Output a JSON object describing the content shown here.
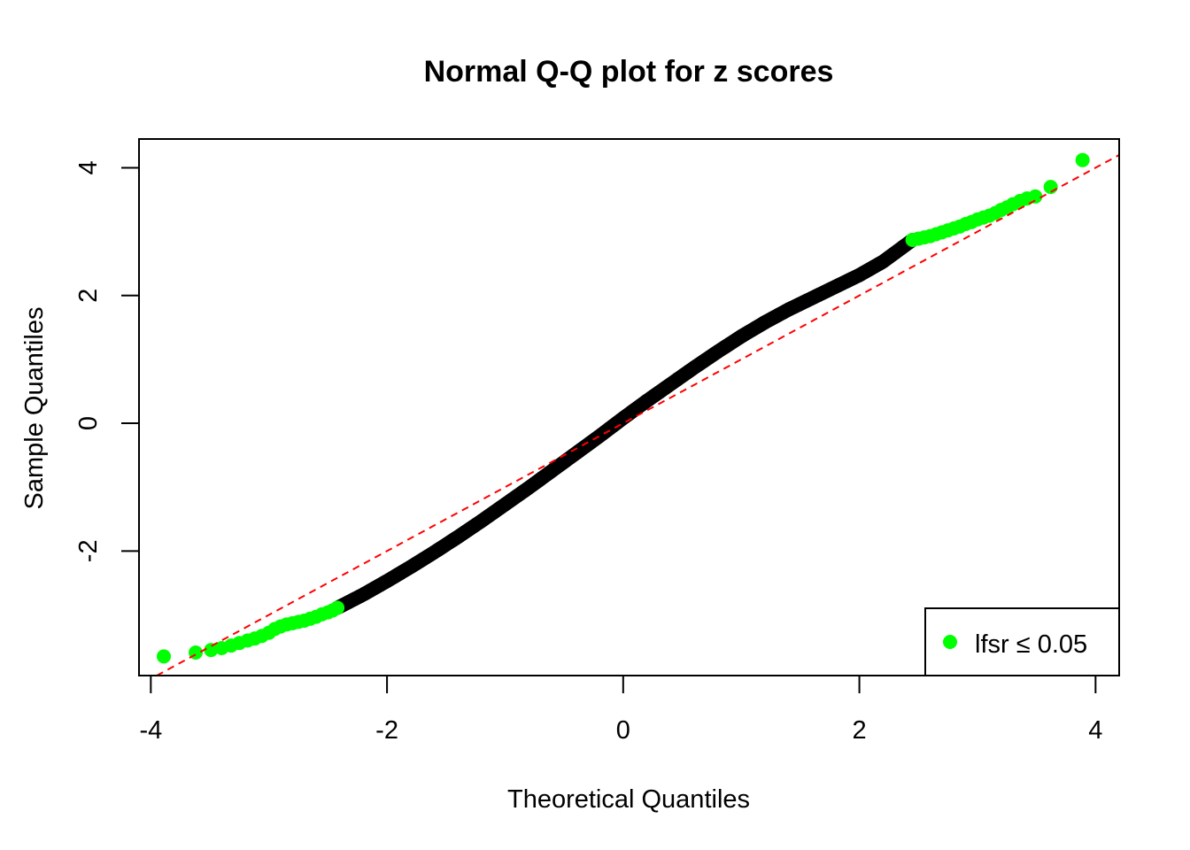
{
  "chart_data": {
    "type": "scatter",
    "title": "Normal Q-Q plot for z scores",
    "xlabel": "Theoretical Quantiles",
    "ylabel": "Sample Quantiles",
    "xlim": [
      -4.1,
      4.2
    ],
    "ylim": [
      -3.95,
      4.45
    ],
    "x_ticks": [
      -4,
      -2,
      0,
      2,
      4
    ],
    "x_tick_labels": [
      "-4",
      "-2",
      "0",
      "2",
      "4"
    ],
    "y_ticks": [
      -2,
      0,
      2,
      4
    ],
    "y_tick_labels": [
      "-2",
      "0",
      "2",
      "4"
    ],
    "grid": false,
    "reference_line": {
      "intercept": 0,
      "slope": 1,
      "color": "#ff0000",
      "style": "dashed"
    },
    "series": [
      {
        "name": "lfsr ≤ 0.05",
        "color": "#00ff00",
        "points": [
          [
            -3.89,
            -3.65
          ],
          [
            -3.62,
            -3.59
          ],
          [
            -3.49,
            -3.55
          ],
          [
            -3.4,
            -3.52
          ],
          [
            -3.32,
            -3.48
          ],
          [
            -3.25,
            -3.44
          ],
          [
            -3.18,
            -3.4
          ],
          [
            -3.12,
            -3.37
          ],
          [
            -3.06,
            -3.33
          ],
          [
            -3.0,
            -3.28
          ],
          [
            -2.95,
            -3.22
          ],
          [
            -2.9,
            -3.18
          ],
          [
            -2.85,
            -3.15
          ],
          [
            -2.8,
            -3.13
          ],
          [
            -2.75,
            -3.11
          ],
          [
            -2.7,
            -3.09
          ],
          [
            -2.65,
            -3.06
          ],
          [
            -2.6,
            -3.03
          ],
          [
            -2.55,
            -2.99
          ],
          [
            -2.5,
            -2.96
          ],
          [
            -2.46,
            -2.93
          ],
          [
            -2.42,
            -2.89
          ],
          [
            2.45,
            2.87
          ],
          [
            2.5,
            2.89
          ],
          [
            2.55,
            2.91
          ],
          [
            2.6,
            2.93
          ],
          [
            2.65,
            2.96
          ],
          [
            2.7,
            2.99
          ],
          [
            2.75,
            3.02
          ],
          [
            2.8,
            3.05
          ],
          [
            2.85,
            3.08
          ],
          [
            2.9,
            3.12
          ],
          [
            2.95,
            3.15
          ],
          [
            3.0,
            3.19
          ],
          [
            3.05,
            3.22
          ],
          [
            3.1,
            3.25
          ],
          [
            3.15,
            3.29
          ],
          [
            3.2,
            3.34
          ],
          [
            3.25,
            3.38
          ],
          [
            3.3,
            3.43
          ],
          [
            3.36,
            3.48
          ],
          [
            3.42,
            3.52
          ],
          [
            3.49,
            3.55
          ],
          [
            3.62,
            3.7
          ],
          [
            3.89,
            4.12
          ]
        ]
      },
      {
        "name": "",
        "color": "#000000",
        "points": [
          [
            -2.42,
            -2.89
          ],
          [
            -2.2,
            -2.68
          ],
          [
            -2.0,
            -2.47
          ],
          [
            -1.8,
            -2.25
          ],
          [
            -1.6,
            -2.02
          ],
          [
            -1.4,
            -1.78
          ],
          [
            -1.2,
            -1.53
          ],
          [
            -1.0,
            -1.27
          ],
          [
            -0.8,
            -1.01
          ],
          [
            -0.6,
            -0.74
          ],
          [
            -0.4,
            -0.47
          ],
          [
            -0.2,
            -0.2
          ],
          [
            0.0,
            0.08
          ],
          [
            0.2,
            0.35
          ],
          [
            0.4,
            0.61
          ],
          [
            0.6,
            0.87
          ],
          [
            0.8,
            1.12
          ],
          [
            1.0,
            1.36
          ],
          [
            1.2,
            1.58
          ],
          [
            1.4,
            1.78
          ],
          [
            1.6,
            1.96
          ],
          [
            1.8,
            2.14
          ],
          [
            2.0,
            2.32
          ],
          [
            2.2,
            2.53
          ],
          [
            2.45,
            2.87
          ]
        ]
      }
    ],
    "legend": {
      "position": "bottom-right",
      "label": "lfsr ≤ 0.05",
      "color": "#00ff00"
    }
  }
}
